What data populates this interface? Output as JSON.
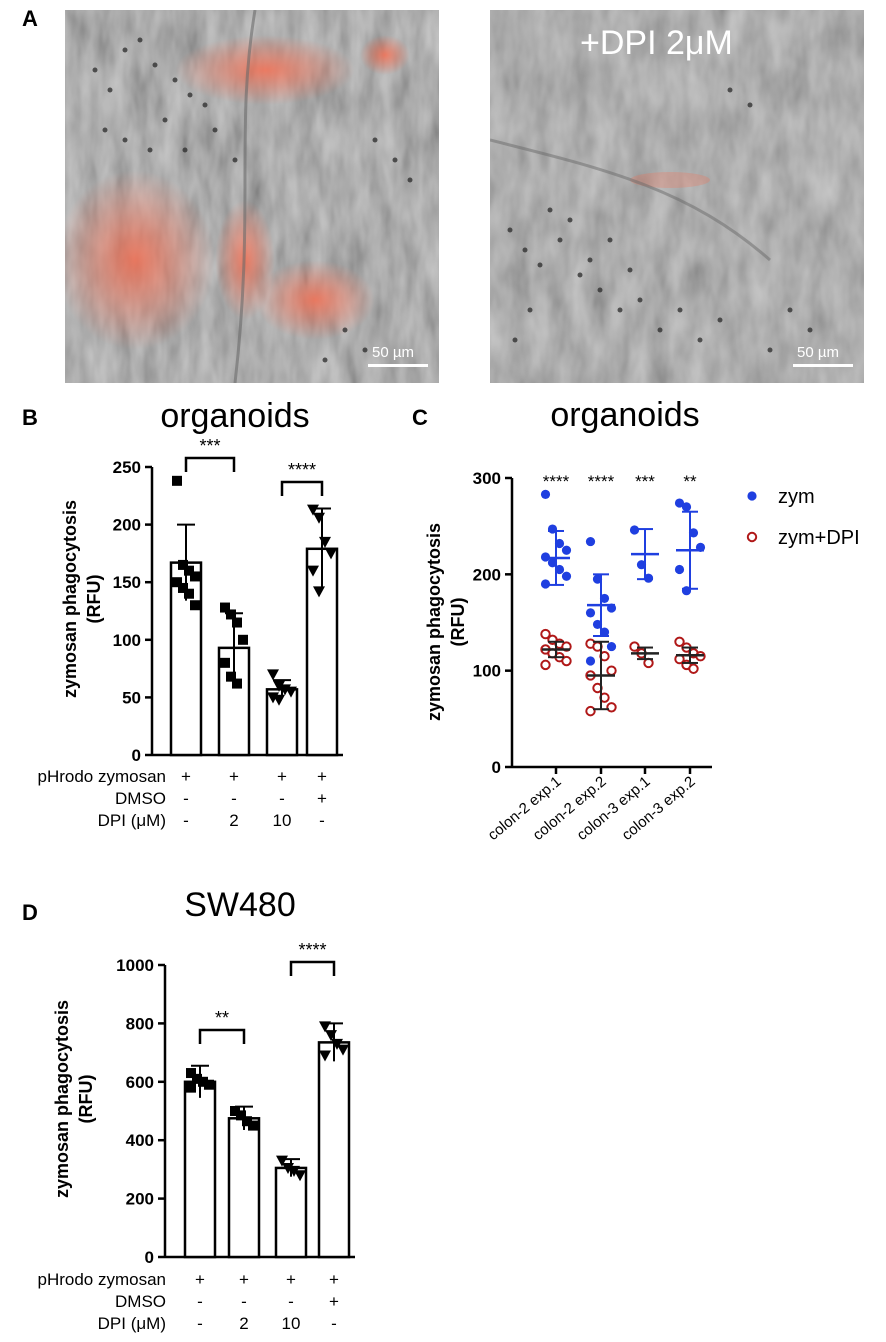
{
  "panels": {
    "A": "A",
    "B": "B",
    "C": "C",
    "D": "D"
  },
  "microscopy": {
    "right_label": "+DPI 2μM",
    "scale_left": "50 µm",
    "scale_right": "50 µm"
  },
  "chart_data": [
    {
      "id": "B",
      "type": "bar",
      "title": "organoids",
      "ylabel": "zymosan phagocytosis\n(RFU)",
      "ylim": [
        0,
        250
      ],
      "yticks": [
        "0",
        "50",
        "100",
        "150",
        "200",
        "250"
      ],
      "values": [
        167,
        93,
        57,
        179
      ],
      "errors": [
        33,
        30,
        8,
        35
      ],
      "markers": [
        "square",
        "square",
        "triangle-down",
        "triangle-down"
      ],
      "points": [
        [
          238,
          165,
          160,
          155,
          150,
          145,
          140,
          130
        ],
        [
          128,
          122,
          115,
          100,
          80,
          68,
          62
        ],
        [
          70,
          60,
          57,
          55,
          50,
          48
        ],
        [
          213,
          206,
          185,
          175,
          160,
          142
        ]
      ],
      "conditions": [
        {
          "label": "pHrodo zymosan",
          "values": [
            "+",
            "+",
            "+",
            "+"
          ]
        },
        {
          "label": "DMSO",
          "values": [
            "-",
            "-",
            "-",
            "+"
          ]
        },
        {
          "label": "DPI (μM)",
          "values": [
            "-",
            "2",
            "10",
            "-"
          ]
        }
      ],
      "significance": [
        {
          "from": 0,
          "to": 1,
          "label": "***"
        },
        {
          "from": 2,
          "to": 3,
          "label": "****"
        }
      ]
    },
    {
      "id": "C",
      "type": "scatter",
      "title": "organoids",
      "ylabel": "zymosan phagocytosis\n(RFU)",
      "ylim": [
        0,
        300
      ],
      "yticks": [
        "0",
        "100",
        "200",
        "300"
      ],
      "categories": [
        "colon-2 exp.1",
        "colon-2 exp.2",
        "colon-3 exp.1",
        "colon-3 exp.2"
      ],
      "series": [
        {
          "name": "zym",
          "color": "#1f3fe0",
          "means": [
            217,
            168,
            221,
            225
          ],
          "sds": [
            28,
            32,
            26,
            40
          ],
          "points": [
            [
              283,
              247,
              232,
              225,
              218,
              212,
              205,
              198,
              190
            ],
            [
              234,
              195,
              175,
              165,
              160,
              148,
              140,
              125,
              110
            ],
            [
              246,
              210,
              196
            ],
            [
              274,
              270,
              243,
              228,
              205,
              183
            ]
          ]
        },
        {
          "name": "zym+DPI",
          "color": "#b01818",
          "means": [
            122,
            95,
            118,
            116
          ],
          "sds": [
            8,
            35,
            6,
            8
          ],
          "points": [
            [
              138,
              132,
              128,
              125,
              122,
              118,
              114,
              110,
              106
            ],
            [
              128,
              125,
              115,
              100,
              95,
              82,
              72,
              62,
              58
            ],
            [
              125,
              118,
              108
            ],
            [
              130,
              124,
              118,
              115,
              112,
              106,
              102
            ]
          ]
        }
      ],
      "significance": [
        "****",
        "****",
        "***",
        "**"
      ],
      "legend": "right"
    },
    {
      "id": "D",
      "type": "bar",
      "title": "SW480",
      "ylabel": "zymosan phagocytosis\n(RFU)",
      "ylim": [
        0,
        1000
      ],
      "yticks": [
        "0",
        "200",
        "400",
        "600",
        "800",
        "1000"
      ],
      "values": [
        600,
        475,
        305,
        735
      ],
      "errors": [
        55,
        40,
        30,
        65
      ],
      "markers": [
        "square",
        "square",
        "triangle-down",
        "triangle-down"
      ],
      "points": [
        [
          630,
          610,
          600,
          590,
          580
        ],
        [
          500,
          485,
          465,
          450
        ],
        [
          330,
          305,
          295,
          280
        ],
        [
          790,
          760,
          730,
          710,
          690
        ]
      ],
      "conditions": [
        {
          "label": "pHrodo zymosan",
          "values": [
            "+",
            "+",
            "+",
            "+"
          ]
        },
        {
          "label": "DMSO",
          "values": [
            "-",
            "-",
            "-",
            "+"
          ]
        },
        {
          "label": "DPI (μM)",
          "values": [
            "-",
            "2",
            "10",
            "-"
          ]
        }
      ],
      "significance": [
        {
          "from": 0,
          "to": 1,
          "label": "**"
        },
        {
          "from": 2,
          "to": 3,
          "label": "****"
        }
      ]
    }
  ]
}
